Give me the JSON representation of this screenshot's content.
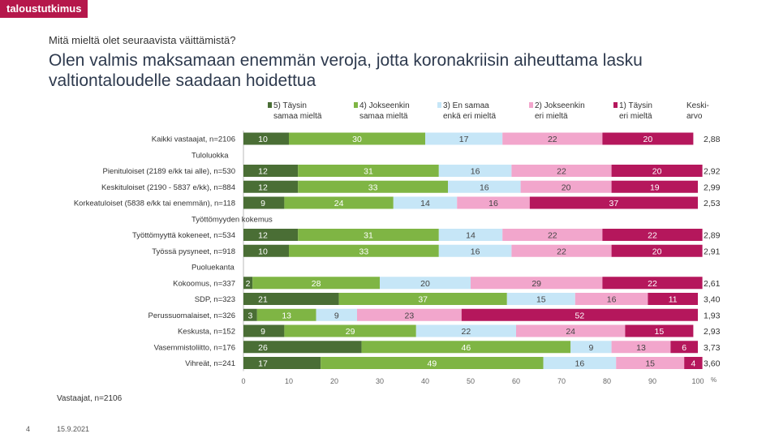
{
  "brand": "taloustutkimus",
  "subtitle": "Mitä mieltä olet seuraavista väittämistä?",
  "title": "Olen valmis maksamaan enemmän veroja, jotta koronakriisin aiheuttama lasku valtiontaloudelle saadaan hoidettua",
  "footer_note": "Vastaajat, n=2106",
  "page_number": "4",
  "date": "15.9.2021",
  "colors": {
    "c5": "#4a6e35",
    "c4": "#7fb544",
    "c3": "#c6e6f7",
    "c2": "#f2a6cc",
    "c1": "#b5175c"
  },
  "chart_data": {
    "type": "bar",
    "orientation": "horizontal",
    "stacked": true,
    "xlim": [
      0,
      100
    ],
    "x_ticks": [
      "0",
      "10",
      "20",
      "30",
      "40",
      "50",
      "60",
      "70",
      "80",
      "90",
      "100"
    ],
    "x_unit": "%",
    "legend": [
      {
        "key": "c5",
        "label": [
          "5) Täysin",
          "samaa mieltä"
        ]
      },
      {
        "key": "c4",
        "label": [
          "4) Jokseenkin",
          "samaa mieltä"
        ]
      },
      {
        "key": "c3",
        "label": [
          "3) En samaa",
          "enkä eri mieltä"
        ]
      },
      {
        "key": "c2",
        "label": [
          "2) Jokseenkin",
          "eri mieltä"
        ]
      },
      {
        "key": "c1",
        "label": [
          "1) Täysin",
          "eri mieltä"
        ]
      }
    ],
    "mean_header": [
      "Keski-",
      "arvo"
    ],
    "rows": [
      {
        "kind": "bar",
        "label": "Kaikki vastaajat, n=2106",
        "values": [
          10,
          30,
          17,
          22,
          20
        ],
        "mean": "2,88"
      },
      {
        "kind": "group",
        "label": "Tuloluokka"
      },
      {
        "kind": "bar",
        "label": "Pienituloiset (2189 e/kk tai alle), n=530",
        "values": [
          12,
          31,
          16,
          22,
          20
        ],
        "mean": "2,92"
      },
      {
        "kind": "bar",
        "label": "Keskituloiset (2190 - 5837 e/kk), n=884",
        "values": [
          12,
          33,
          16,
          20,
          19
        ],
        "mean": "2,99"
      },
      {
        "kind": "bar",
        "label": "Korkeatuloiset (5838 e/kk tai enemmän), n=118",
        "values": [
          9,
          24,
          14,
          16,
          37
        ],
        "mean": "2,53"
      },
      {
        "kind": "group",
        "label": "Työttömyyden kokemus"
      },
      {
        "kind": "bar",
        "label": "Työttömyyttä kokeneet, n=534",
        "values": [
          12,
          31,
          14,
          22,
          22
        ],
        "mean": "2,89"
      },
      {
        "kind": "bar",
        "label": "Työssä pysyneet, n=918",
        "values": [
          10,
          33,
          16,
          22,
          20
        ],
        "mean": "2,91"
      },
      {
        "kind": "group",
        "label": "Puoluekanta"
      },
      {
        "kind": "bar",
        "label": "Kokoomus, n=337",
        "values": [
          2,
          28,
          20,
          29,
          22
        ],
        "mean": "2,61"
      },
      {
        "kind": "bar",
        "label": "SDP, n=323",
        "values": [
          21,
          37,
          15,
          16,
          11
        ],
        "mean": "3,40"
      },
      {
        "kind": "bar",
        "label": "Perussuomalaiset, n=326",
        "values": [
          3,
          13,
          9,
          23,
          52
        ],
        "mean": "1,93"
      },
      {
        "kind": "bar",
        "label": "Keskusta, n=152",
        "values": [
          9,
          29,
          22,
          24,
          15
        ],
        "mean": "2,93"
      },
      {
        "kind": "bar",
        "label": "Vasemmistoliitto, n=176",
        "values": [
          26,
          46,
          9,
          13,
          6
        ],
        "mean": "3,73"
      },
      {
        "kind": "bar",
        "label": "Vihreät, n=241",
        "values": [
          17,
          49,
          16,
          15,
          4
        ],
        "mean": "3,60"
      }
    ]
  }
}
